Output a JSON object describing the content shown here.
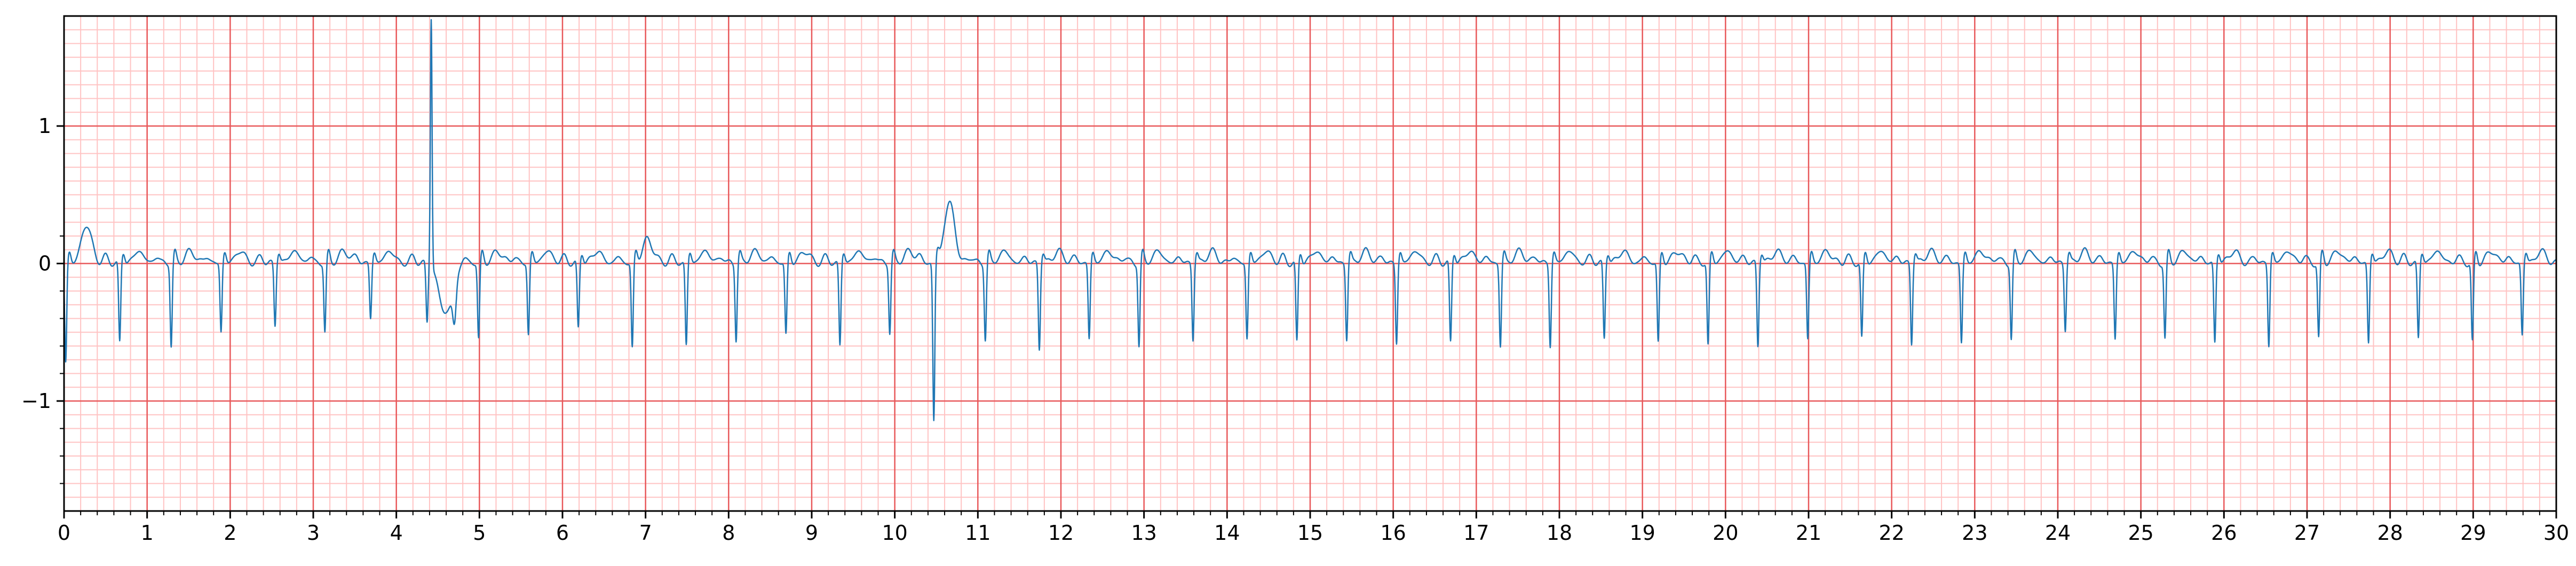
{
  "chart_data": {
    "type": "line",
    "title": "",
    "xlabel": "",
    "ylabel": "",
    "xlim": [
      0,
      30
    ],
    "ylim": [
      -1.8,
      1.8
    ],
    "x_ticks": [
      0,
      1,
      2,
      3,
      4,
      5,
      6,
      7,
      8,
      9,
      10,
      11,
      12,
      13,
      14,
      15,
      16,
      17,
      18,
      19,
      20,
      21,
      22,
      23,
      24,
      25,
      26,
      27,
      28,
      29,
      30
    ],
    "x_tick_labels": [
      "0",
      "1",
      "2",
      "3",
      "4",
      "5",
      "6",
      "7",
      "8",
      "9",
      "10",
      "11",
      "12",
      "13",
      "14",
      "15",
      "16",
      "17",
      "18",
      "19",
      "20",
      "21",
      "22",
      "23",
      "24",
      "25",
      "26",
      "27",
      "28",
      "29",
      "30"
    ],
    "y_ticks": [
      -1,
      0,
      1
    ],
    "y_tick_labels": [
      "−1",
      "0",
      "1"
    ],
    "grid": {
      "major": true,
      "minor": true,
      "major_color": "#e8585a",
      "minor_color": "#ffc3c3",
      "minor_x_step": 0.2,
      "minor_y_step": 0.1
    },
    "line_color": "#1f77b4",
    "series": [
      {
        "beat_times": [
          0.03,
          0.68,
          1.3,
          1.9,
          2.55,
          3.15,
          3.7,
          4.38,
          5.0,
          5.6,
          6.2,
          6.85,
          7.5,
          8.1,
          8.7,
          9.35,
          9.95,
          10.48,
          11.1,
          11.75,
          12.35,
          12.95,
          13.6,
          14.25,
          14.85,
          15.45,
          16.05,
          16.7,
          17.3,
          17.9,
          18.55,
          19.2,
          19.8,
          20.4,
          21.0,
          21.65,
          22.25,
          22.85,
          23.45,
          24.1,
          24.7,
          25.3,
          25.9,
          26.55,
          27.15,
          27.75,
          28.35,
          29.0,
          29.6
        ],
        "beat_depths": [
          -0.72,
          -0.58,
          -0.6,
          -0.5,
          -0.45,
          -0.5,
          -0.4,
          -0.42,
          -0.55,
          -0.52,
          -0.48,
          -0.62,
          -0.6,
          -0.55,
          -0.52,
          -0.6,
          -0.5,
          -1.15,
          -0.55,
          -0.62,
          -0.55,
          -0.6,
          -0.55,
          -0.55,
          -0.58,
          -0.55,
          -0.58,
          -0.58,
          -0.6,
          -0.6,
          -0.55,
          -0.58,
          -0.6,
          -0.6,
          -0.55,
          -0.55,
          -0.58,
          -0.58,
          -0.55,
          -0.48,
          -0.55,
          -0.55,
          -0.58,
          -0.6,
          -0.55,
          -0.58,
          -0.55,
          -0.58,
          -0.52
        ],
        "min": -1.15,
        "max": 1.65
      }
    ],
    "annotations": [
      {
        "x": 4.42,
        "y": 1.65,
        "kind": "spike"
      },
      {
        "x": 4.6,
        "y": -0.72,
        "kind": "wide-trough"
      },
      {
        "x": 10.48,
        "y": -1.15,
        "kind": "deep-spike"
      },
      {
        "x": 10.65,
        "y": 0.42,
        "kind": "wide-peak"
      }
    ]
  }
}
